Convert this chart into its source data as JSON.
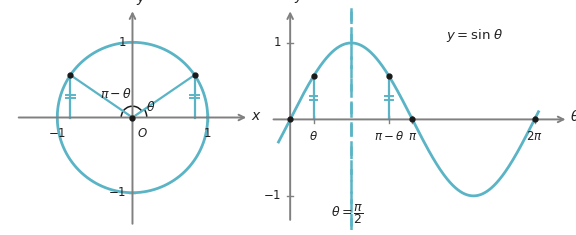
{
  "circle_color": "#5AB4C5",
  "circle_lw": 2.0,
  "sin_color": "#5AB4C5",
  "sin_lw": 2.0,
  "axis_color": "#808080",
  "dashed_color": "#5AB4C5",
  "dot_color": "#1a1a1a",
  "theta_val": 0.6,
  "fig_bg": "#ffffff",
  "left_xlim": [
    -1.6,
    1.6
  ],
  "left_ylim": [
    -1.5,
    1.5
  ],
  "right_xlim": [
    -0.5,
    7.2
  ],
  "right_ylim": [
    -1.45,
    1.5
  ]
}
